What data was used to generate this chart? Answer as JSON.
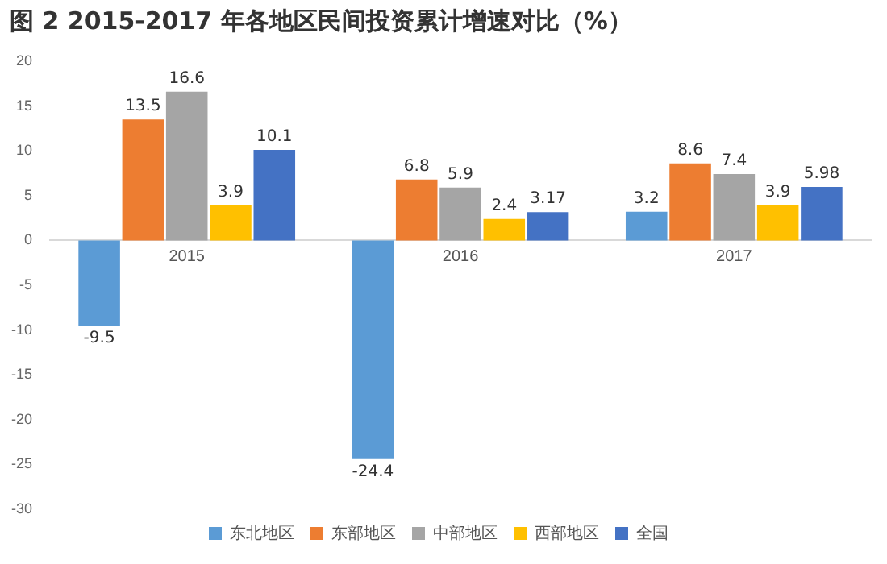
{
  "chart_data": {
    "type": "bar",
    "title": "图 2  2015-2017 年各地区民间投资累计增速对比（%）",
    "categories": [
      "2015",
      "2016",
      "2017"
    ],
    "series": [
      {
        "name": "东北地区",
        "color": "#5b9bd5",
        "values": [
          -9.5,
          -24.4,
          3.2
        ]
      },
      {
        "name": "东部地区",
        "color": "#ed7d31",
        "values": [
          13.5,
          6.8,
          8.6
        ]
      },
      {
        "name": "中部地区",
        "color": "#a5a5a5",
        "values": [
          16.6,
          5.9,
          7.4
        ]
      },
      {
        "name": "西部地区",
        "color": "#ffc000",
        "values": [
          3.9,
          2.4,
          3.9
        ]
      },
      {
        "name": "全国",
        "color": "#4472c4",
        "values": [
          10.1,
          3.17,
          5.98
        ]
      }
    ],
    "ylim": [
      -30,
      20
    ],
    "yticks": [
      -30,
      -25,
      -20,
      -15,
      -10,
      -5,
      0,
      5,
      10,
      15,
      20
    ],
    "grid": false,
    "legend": "bottom",
    "data_labels": true
  }
}
